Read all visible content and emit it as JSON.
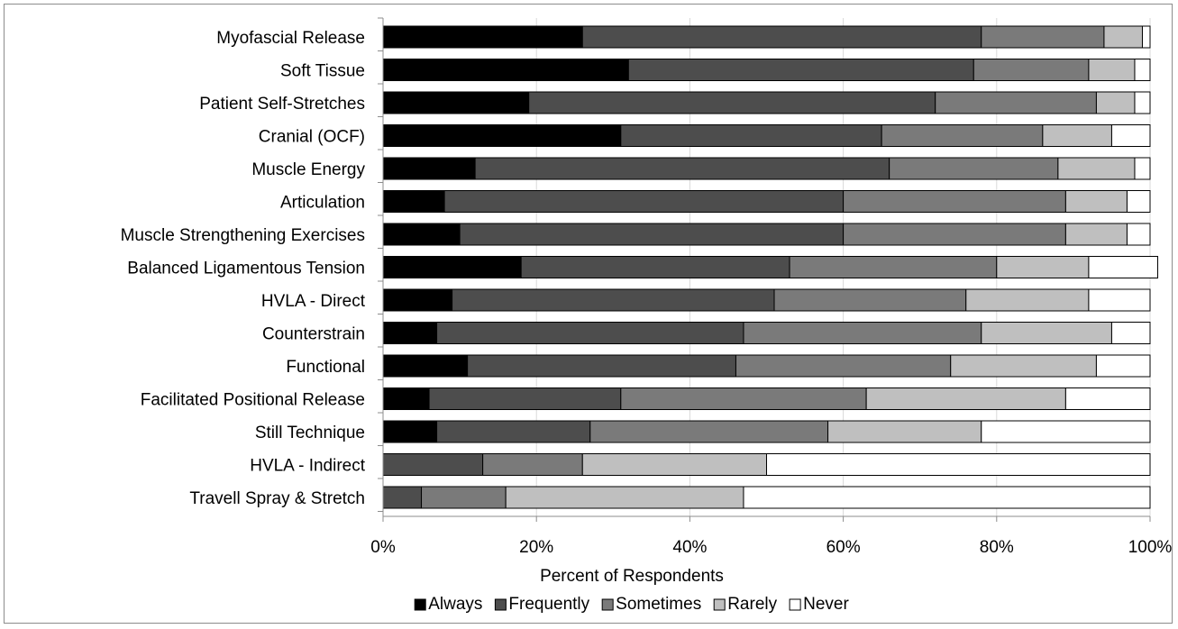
{
  "chart_data": {
    "type": "bar",
    "orientation": "horizontal",
    "stacked": "percent",
    "title": "",
    "xlabel": "Percent of Respondents",
    "ylabel": "",
    "xlim": [
      0,
      100
    ],
    "xticks": [
      0,
      20,
      40,
      60,
      80,
      100
    ],
    "xtick_labels": [
      "0%",
      "20%",
      "40%",
      "60%",
      "80%",
      "100%"
    ],
    "grid": "vertical gridlines",
    "legend_position": "bottom",
    "categories": [
      "Myofascial Release",
      "Soft Tissue",
      "Patient Self-Stretches",
      "Cranial (OCF)",
      "Muscle Energy",
      "Articulation",
      "Muscle Strengthening Exercises",
      "Balanced Ligamentous Tension",
      "HVLA - Direct",
      "Counterstrain",
      "Functional",
      "Facilitated Positional Release",
      "Still Technique",
      "HVLA - Indirect",
      "Travell Spray & Stretch"
    ],
    "series": [
      {
        "name": "Always",
        "color": "#000000",
        "values": [
          26,
          32,
          19,
          31,
          12,
          8,
          10,
          18,
          9,
          7,
          11,
          6,
          7,
          0,
          0
        ]
      },
      {
        "name": "Frequently",
        "color": "#4d4d4d",
        "values": [
          52,
          45,
          53,
          34,
          54,
          52,
          50,
          35,
          42,
          40,
          35,
          25,
          20,
          13,
          5
        ]
      },
      {
        "name": "Sometimes",
        "color": "#7a7a7a",
        "values": [
          16,
          15,
          21,
          21,
          22,
          29,
          29,
          27,
          25,
          31,
          28,
          32,
          31,
          13,
          11
        ]
      },
      {
        "name": "Rarely",
        "color": "#bfbfbf",
        "values": [
          5,
          6,
          5,
          9,
          10,
          8,
          8,
          12,
          16,
          17,
          19,
          26,
          20,
          24,
          31
        ]
      },
      {
        "name": "Never",
        "color": "#ffffff",
        "values": [
          1,
          2,
          2,
          5,
          2,
          3,
          3,
          9,
          8,
          5,
          7,
          11,
          22,
          50,
          53
        ]
      }
    ]
  }
}
